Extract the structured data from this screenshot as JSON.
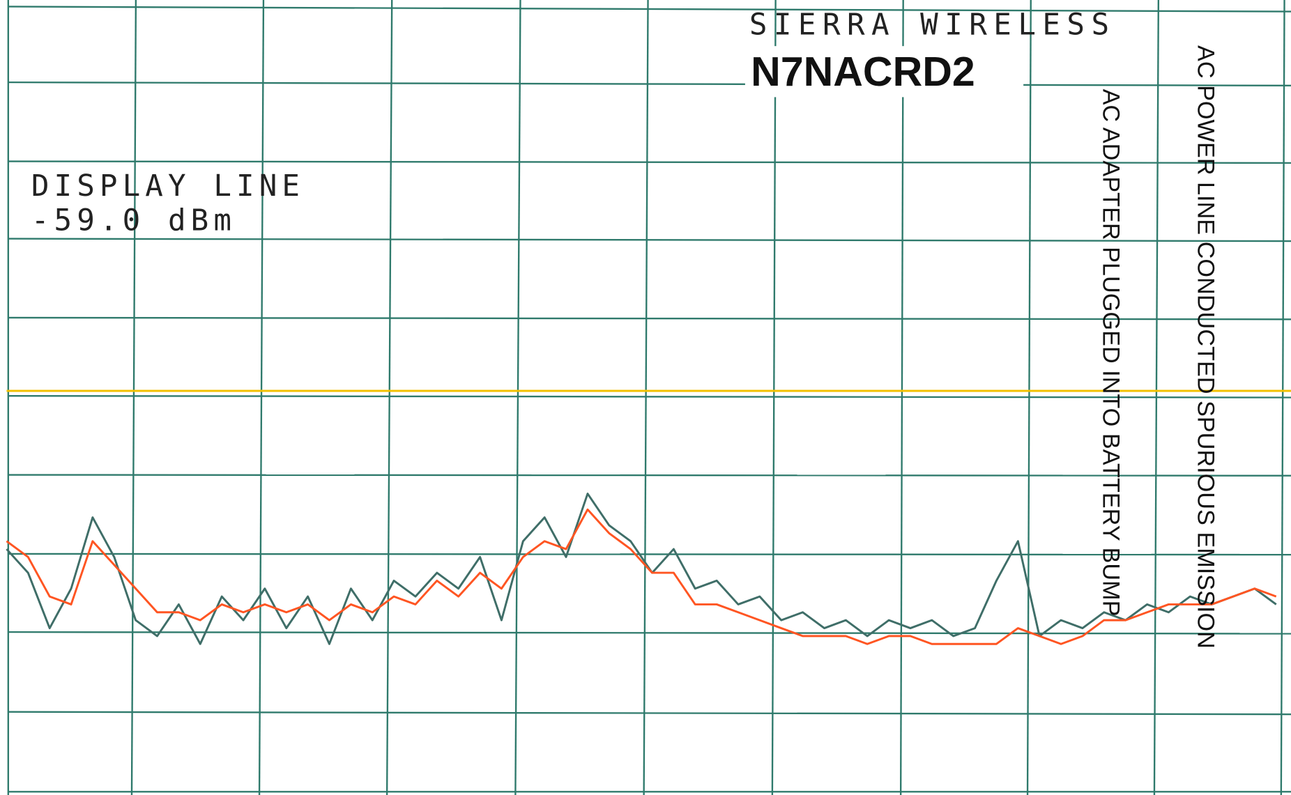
{
  "chart_data": {
    "type": "line",
    "header": "SIERRA WIRELESS",
    "title": "N7NACRD2",
    "display_line_title": "DISPLAY LINE",
    "display_line": {
      "value": -59.0,
      "label": "-59.0 dBm"
    },
    "display_line_color": "#f2c000",
    "annotations": [
      "AC POWER LINE CONDUCTED SPURIOUS EMISSION",
      "AC ADAPTER PLUGGED INTO BATTERY BUMP"
    ],
    "ylim": [
      -110.1,
      -10.4
    ],
    "series": [
      {
        "color": "#3f6e68",
        "values": [
          -79,
          -82,
          -89,
          -84,
          -75,
          -80,
          -88,
          -90,
          -86,
          -91,
          -85,
          -88,
          -84,
          -89,
          -85,
          -91,
          -84,
          -88,
          -83,
          -85,
          -82,
          -84,
          -80,
          -88,
          -78,
          -75,
          -80,
          -72,
          -76,
          -78,
          -82,
          -79,
          -84,
          -83,
          -86,
          -85,
          -88,
          -87,
          -89,
          -88,
          -90,
          -88,
          -89,
          -88,
          -90,
          -89,
          -83,
          -78,
          -90,
          -88,
          -89,
          -87,
          -88,
          -86,
          -87,
          -85,
          -86,
          -85,
          -84,
          -86
        ]
      },
      {
        "color": "#ff5522",
        "values": [
          -78,
          -80,
          -85,
          -86,
          -78,
          -81,
          -84,
          -87,
          -87,
          -88,
          -86,
          -87,
          -86,
          -87,
          -86,
          -88,
          -86,
          -87,
          -85,
          -86,
          -83,
          -85,
          -82,
          -84,
          -80,
          -78,
          -79,
          -74,
          -77,
          -79,
          -82,
          -82,
          -86,
          -86,
          -87,
          -88,
          -89,
          -90,
          -90,
          -90,
          -91,
          -90,
          -90,
          -91,
          -91,
          -91,
          -91,
          -89,
          -90,
          -91,
          -90,
          -88,
          -88,
          -87,
          -86,
          -86,
          -86,
          -85,
          -84,
          -85
        ]
      }
    ]
  }
}
